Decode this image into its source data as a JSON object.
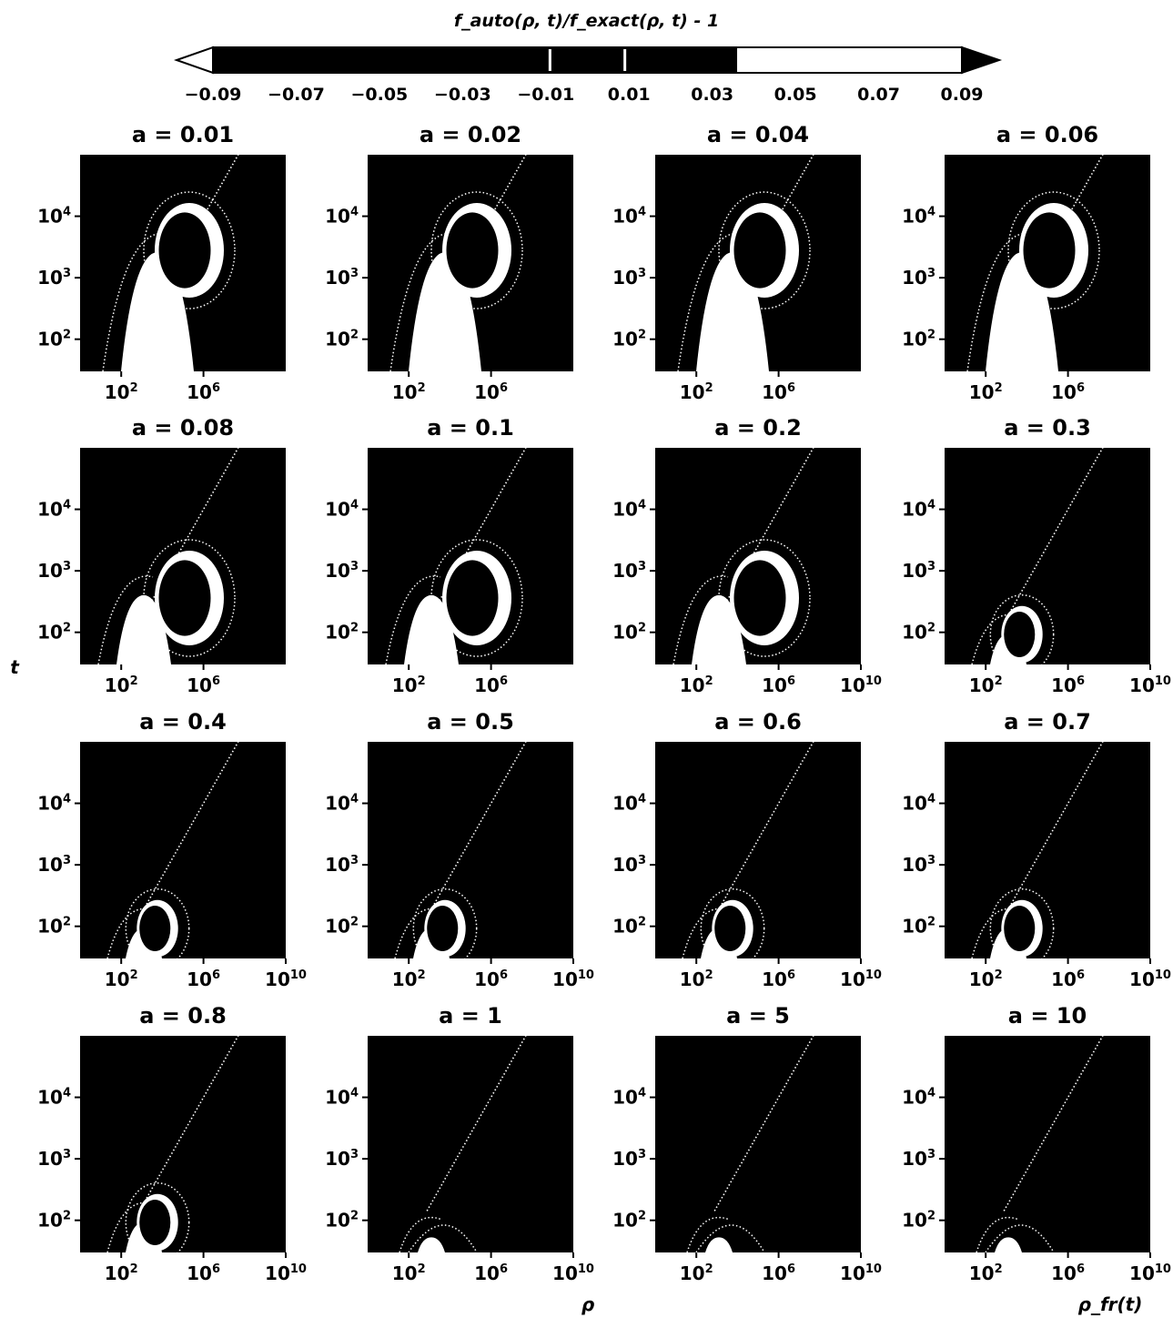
{
  "colorbar": {
    "label": "f_auto(ρ, t)/f_exact(ρ, t) - 1",
    "ticks": [
      "−0.09",
      "−0.07",
      "−0.05",
      "−0.03",
      "−0.01",
      "0.01",
      "0.03",
      "0.05",
      "0.07",
      "0.09"
    ],
    "range": [
      -0.1,
      0.1
    ],
    "extend": "both"
  },
  "panel_ylabel": "t",
  "panel_xlabel": "ρ",
  "corner_label": "ρ_fr(t)",
  "ytick_labels": [
    "10^4",
    "10^3",
    "10^2"
  ],
  "chart_data": {
    "type": "heatmap",
    "xscale": "log",
    "yscale": "log",
    "xlabel": "ρ",
    "ylabel": "t",
    "ylim": [
      30,
      100000
    ],
    "xlim": [
      1,
      10000000000
    ],
    "colormap": "gray",
    "panels": [
      {
        "title": "a = 0.01",
        "xticks": [
          "10^2",
          "10^6"
        ]
      },
      {
        "title": "a = 0.02",
        "xticks": [
          "10^2",
          "10^6"
        ]
      },
      {
        "title": "a = 0.04",
        "xticks": [
          "10^2",
          "10^6"
        ]
      },
      {
        "title": "a = 0.06",
        "xticks": [
          "10^2",
          "10^6"
        ]
      },
      {
        "title": "a = 0.08",
        "xticks": [
          "10^2",
          "10^6"
        ]
      },
      {
        "title": "a = 0.1",
        "xticks": [
          "10^2",
          "10^6"
        ]
      },
      {
        "title": "a = 0.2",
        "xticks": [
          "10^2",
          "10^6",
          "10^10"
        ]
      },
      {
        "title": "a = 0.3",
        "xticks": [
          "10^2",
          "10^6",
          "10^10"
        ]
      },
      {
        "title": "a = 0.4",
        "xticks": [
          "10^2",
          "10^6",
          "10^10"
        ]
      },
      {
        "title": "a = 0.5",
        "xticks": [
          "10^2",
          "10^6",
          "10^10"
        ]
      },
      {
        "title": "a = 0.6",
        "xticks": [
          "10^2",
          "10^6",
          "10^10"
        ]
      },
      {
        "title": "a = 0.7",
        "xticks": [
          "10^2",
          "10^6",
          "10^10"
        ]
      },
      {
        "title": "a = 0.8",
        "xticks": [
          "10^2",
          "10^6",
          "10^10"
        ]
      },
      {
        "title": "a = 1",
        "xticks": [
          "10^2",
          "10^6",
          "10^10"
        ]
      },
      {
        "title": "a = 5",
        "xticks": [
          "10^2",
          "10^6",
          "10^10"
        ]
      },
      {
        "title": "a = 10",
        "xticks": [
          "10^2",
          "10^6",
          "10^10"
        ]
      }
    ]
  }
}
